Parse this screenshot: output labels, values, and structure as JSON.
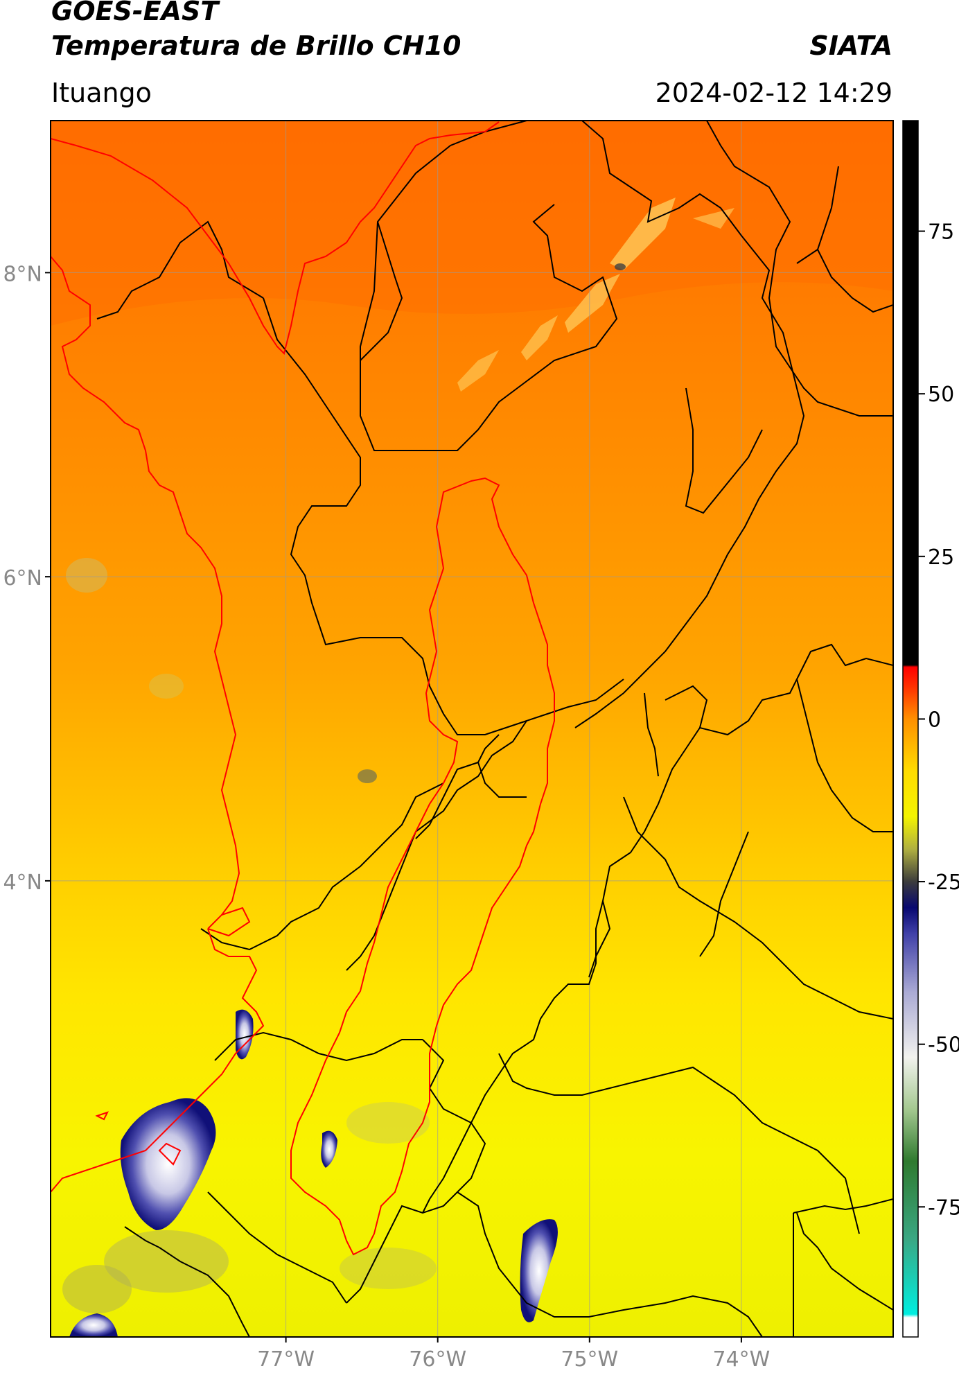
{
  "header": {
    "satellite": "GOES-EAST",
    "product": "Temperatura de Brillo CH10",
    "agency": "SIATA",
    "region": "Ituango",
    "datetime": "2024-02-12 14:29"
  },
  "map": {
    "extent": {
      "lon": [
        -78.55,
        -73.0
      ],
      "lat": [
        1.0,
        9.0
      ]
    },
    "lat_ticks": [
      {
        "value": 8,
        "label": "8°N"
      },
      {
        "value": 6,
        "label": "6°N"
      },
      {
        "value": 4,
        "label": "4°N"
      }
    ],
    "lon_ticks": [
      {
        "value": -77,
        "label": "77°W"
      },
      {
        "value": -76,
        "label": "76°W"
      },
      {
        "value": -75,
        "label": "75°W"
      },
      {
        "value": -74,
        "label": "74°W"
      }
    ],
    "border_color": "#000000",
    "highlight_color": "#ff0000",
    "coastline_color": "#ff0000"
  },
  "colorbar": {
    "range": [
      -95,
      92
    ],
    "ticks": [
      {
        "value": 75,
        "label": "75"
      },
      {
        "value": 50,
        "label": "50"
      },
      {
        "value": 25,
        "label": "25"
      },
      {
        "value": 0,
        "label": "0"
      },
      {
        "value": -25,
        "label": "-25"
      },
      {
        "value": -50,
        "label": "-50"
      },
      {
        "value": -75,
        "label": "-75"
      }
    ],
    "stops": [
      {
        "value": -95,
        "color": "#ffffff"
      },
      {
        "value": -92,
        "color": "#ffffff"
      },
      {
        "value": -91.5,
        "color": "#00eee0"
      },
      {
        "value": -80,
        "color": "#3aa884"
      },
      {
        "value": -68,
        "color": "#2f7a2f"
      },
      {
        "value": -60,
        "color": "#a4c890"
      },
      {
        "value": -52,
        "color": "#f2f2ee"
      },
      {
        "value": -42,
        "color": "#aaaad4"
      },
      {
        "value": -33,
        "color": "#4040a8"
      },
      {
        "value": -29,
        "color": "#080870"
      },
      {
        "value": -25,
        "color": "#3c3c3c"
      },
      {
        "value": -20,
        "color": "#b0b040"
      },
      {
        "value": -15,
        "color": "#f4f400"
      },
      {
        "value": -8,
        "color": "#ffdc00"
      },
      {
        "value": 0,
        "color": "#ff9000"
      },
      {
        "value": 5,
        "color": "#ff3000"
      },
      {
        "value": 8,
        "color": "#ff0000"
      },
      {
        "value": 8.3,
        "color": "#000000"
      },
      {
        "value": 92,
        "color": "#000000"
      }
    ]
  }
}
